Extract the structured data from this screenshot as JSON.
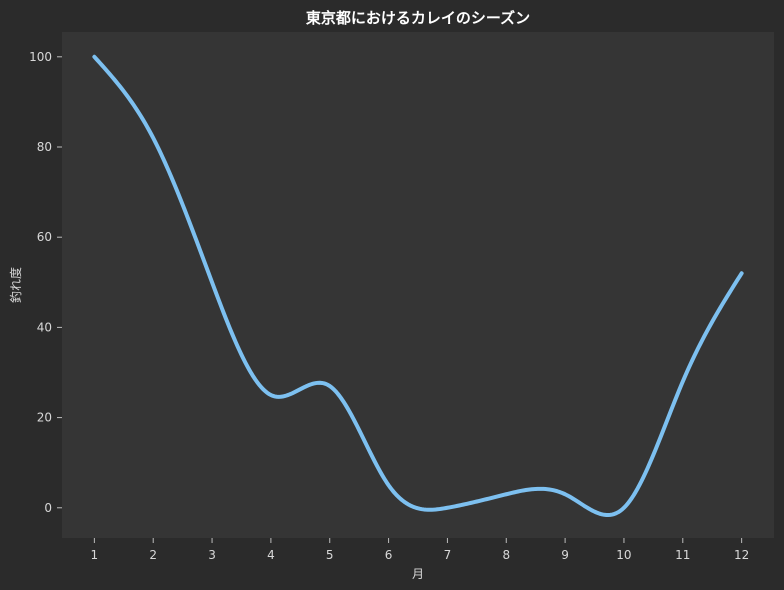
{
  "chart_data": {
    "type": "line",
    "title": "東京都におけるカレイのシーズン",
    "xlabel": "月",
    "ylabel": "釣れ度",
    "x": [
      1,
      2,
      3,
      4,
      5,
      6,
      7,
      8,
      9,
      10,
      11,
      12
    ],
    "series": [
      {
        "values": [
          100,
          82,
          50,
          25,
          27,
          5,
          0,
          3,
          3,
          0,
          28,
          52
        ]
      }
    ],
    "xticks": [
      1,
      2,
      3,
      4,
      5,
      6,
      7,
      8,
      9,
      10,
      11,
      12
    ],
    "yticks": [
      0,
      20,
      40,
      60,
      80,
      100
    ],
    "xlim": [
      0.45,
      12.55
    ],
    "ylim": [
      -6.7,
      105.5
    ],
    "grid": false,
    "legend": "none",
    "colors": {
      "figure_background": "#2b2b2b",
      "plot_background": "#353535",
      "line": "#7dc0f0"
    }
  }
}
